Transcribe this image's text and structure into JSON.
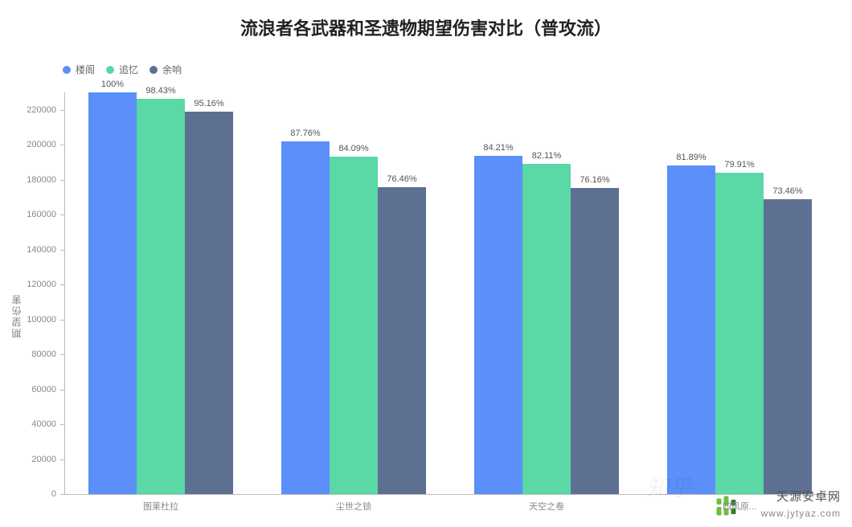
{
  "chart": {
    "type": "bar",
    "title": "流浪者各武器和圣遗物期望伤害对比（普攻流）",
    "title_fontsize": 22,
    "title_color": "#222222",
    "background_color": "#ffffff",
    "ylabel": "期望伤害",
    "label_fontsize": 12,
    "axis_color": "#bbbbbb",
    "tick_color": "#888888",
    "ylim": [
      0,
      230000
    ],
    "ytick_step": 20000,
    "yticks": [
      0,
      20000,
      40000,
      60000,
      80000,
      100000,
      120000,
      140000,
      160000,
      180000,
      200000,
      220000
    ],
    "categories": [
      "图莱杜拉",
      "尘世之锁",
      "天空之卷",
      "四风原..."
    ],
    "series": [
      {
        "name": "楼阁",
        "color": "#5b8ff9"
      },
      {
        "name": "追忆",
        "color": "#5ad8a6"
      },
      {
        "name": "余响",
        "color": "#5d7092"
      }
    ],
    "bar_width_ratio": 0.25,
    "group_gap_ratio": 0.25,
    "bar_label_fontsize": 11,
    "bar_label_color": "#555555",
    "values": [
      [
        230000,
        226388,
        218868
      ],
      [
        201848,
        193407,
        175858
      ],
      [
        193683,
        188853,
        175168
      ],
      [
        188347,
        183793,
        168958
      ]
    ],
    "percent_labels": [
      [
        "100%",
        "98.43%",
        "95.16%"
      ],
      [
        "87.76%",
        "84.09%",
        "76.46%"
      ],
      [
        "84.21%",
        "82.11%",
        "76.16%"
      ],
      [
        "81.89%",
        "79.91%",
        "73.46%"
      ]
    ]
  },
  "watermark": {
    "site_name": "天源安卓网",
    "site_url": "www.jytyaz.com",
    "logo_color_primary": "#6fbf3f",
    "logo_color_dark": "#2e7d32",
    "faint_text": "知乎"
  }
}
